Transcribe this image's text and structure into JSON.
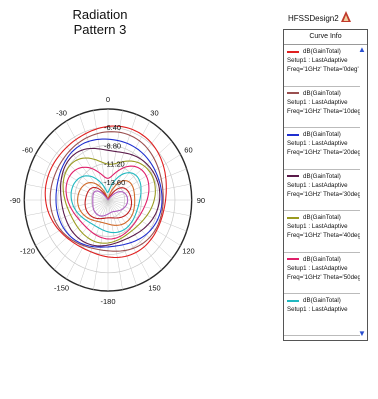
{
  "design_name": "HFSSDesign2",
  "colors": {
    "grid": "#c8c8c8",
    "outer_ring": "#2a2a2a",
    "legend_scroll": "#2a4fd0"
  },
  "chart_data": {
    "type": "polar-line",
    "title": "Radiation Pattern 3",
    "angular_ticks": [
      0,
      30,
      60,
      90,
      120,
      150,
      -180,
      -150,
      -120,
      -90,
      -60,
      -30
    ],
    "radial_ticks": [
      -6.4,
      -8.8,
      -11.2,
      -13.6
    ],
    "radial_tick_labels": [
      "-6.40",
      "-8.80",
      "-11.20",
      "-13.60"
    ],
    "r_range": [
      -16,
      -4
    ],
    "grid": true,
    "legend_header": "Curve Info",
    "legend_placement": "right",
    "series": [
      {
        "name": "dB(GainTotal)",
        "setup": "Setup1 : LastAdaptive",
        "params": "Freq='1GHz' Theta='0deg'",
        "color": "#e01f1f",
        "values_front": -6.3,
        "values_back": -8.5,
        "dip": 0.0
      },
      {
        "name": "dB(GainTotal)",
        "setup": "Setup1 : LastAdaptive",
        "params": "Freq='1GHz' Theta='10deg'",
        "color": "#9a5050",
        "values_front": -6.8,
        "values_back": -9.0,
        "dip": 0.5
      },
      {
        "name": "dB(GainTotal)",
        "setup": "Setup1 : LastAdaptive",
        "params": "Freq='1GHz' Theta='20deg'",
        "color": "#1f2fd0",
        "values_front": -7.3,
        "values_back": -9.5,
        "dip": 1.0
      },
      {
        "name": "dB(GainTotal)",
        "setup": "Setup1 : LastAdaptive",
        "params": "Freq='1GHz' Theta='30deg'",
        "color": "#5a1a4a",
        "values_front": -7.9,
        "values_back": -10.0,
        "dip": 1.6
      },
      {
        "name": "dB(GainTotal)",
        "setup": "Setup1 : LastAdaptive",
        "params": "Freq='1GHz' Theta='40deg'",
        "color": "#9a9a20",
        "values_front": -8.6,
        "values_back": -10.6,
        "dip": 2.4
      },
      {
        "name": "dB(GainTotal)",
        "setup": "Setup1 : LastAdaptive",
        "params": "Freq='1GHz' Theta='50deg'",
        "color": "#e0206a",
        "values_front": -9.4,
        "values_back": -11.2,
        "dip": 3.4
      },
      {
        "name": "dB(GainTotal)",
        "setup": "Setup1 : LastAdaptive",
        "params": "",
        "color": "#20b8c0",
        "values_front": -10.3,
        "values_back": -11.9,
        "dip": 4.6
      },
      {
        "name": "",
        "setup": "",
        "params": "",
        "color": "#d06a2a",
        "values_front": -11.2,
        "values_back": -12.6,
        "dip": 5.9
      },
      {
        "name": "",
        "setup": "",
        "params": "",
        "color": "#c02020",
        "values_front": -12.1,
        "values_back": -13.3,
        "dip": 7.4
      },
      {
        "name": "",
        "setup": "",
        "params": "",
        "color": "#b060c0",
        "values_front": -13.0,
        "values_back": -14.0,
        "dip": 9.2
      }
    ]
  }
}
